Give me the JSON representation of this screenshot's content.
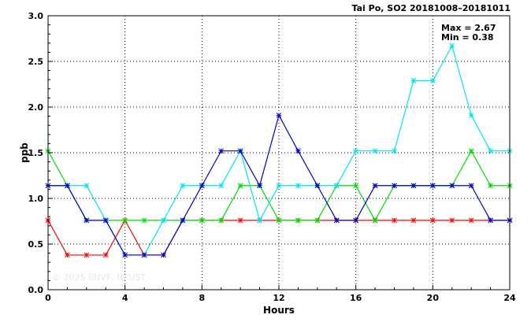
{
  "chart_data": {
    "type": "line",
    "title": "Tai Po, SO2 20181008–20181011",
    "xlabel": "Hours",
    "ylabel": "ppb",
    "xlim": [
      0,
      24
    ],
    "ylim": [
      0,
      3.0
    ],
    "xticks": [
      0,
      4,
      8,
      12,
      16,
      20,
      24
    ],
    "yticks": [
      0.0,
      0.5,
      1.0,
      1.5,
      2.0,
      2.5,
      3.0
    ],
    "ytick_labels": [
      "0.0",
      "0.5",
      "1.0",
      "1.5",
      "2.0",
      "2.5",
      "3.0"
    ],
    "grid": true,
    "x": [
      0,
      1,
      2,
      3,
      4,
      5,
      6,
      7,
      8,
      9,
      10,
      11,
      12,
      13,
      14,
      15,
      16,
      17,
      18,
      19,
      20,
      21,
      22,
      23,
      24
    ],
    "series": [
      {
        "color": "#ff0000",
        "values": [
          0.76,
          0.38,
          0.38,
          0.38,
          0.76,
          0.38,
          0.38,
          0.76,
          0.76,
          0.76,
          0.76,
          0.76,
          0.76,
          0.76,
          0.76,
          0.76,
          0.76,
          0.76,
          0.76,
          0.76,
          0.76,
          0.76,
          0.76,
          0.76,
          0.76
        ]
      },
      {
        "color": "#00dd00",
        "values": [
          1.52,
          1.14,
          0.76,
          0.76,
          0.76,
          0.76,
          0.76,
          0.76,
          0.76,
          0.76,
          1.14,
          1.14,
          0.76,
          0.76,
          0.76,
          1.14,
          1.14,
          0.76,
          1.14,
          1.14,
          1.14,
          1.14,
          1.52,
          1.14,
          1.14
        ]
      },
      {
        "color": "#00e5ee",
        "values": [
          1.14,
          1.14,
          1.14,
          0.76,
          0.38,
          0.38,
          0.76,
          1.14,
          1.14,
          1.14,
          1.52,
          0.76,
          1.14,
          1.14,
          1.14,
          1.14,
          1.52,
          1.52,
          1.52,
          2.29,
          2.29,
          2.67,
          1.91,
          1.52,
          1.52
        ]
      },
      {
        "color": "#0000cc",
        "values": [
          1.14,
          1.14,
          0.76,
          0.76,
          0.38,
          0.38,
          0.38,
          0.76,
          1.14,
          1.52,
          1.52,
          1.14,
          1.91,
          1.52,
          1.14,
          0.76,
          0.76,
          1.14,
          1.14,
          1.14,
          1.14,
          1.14,
          1.14,
          0.76,
          0.76
        ]
      }
    ],
    "annotations": {
      "max": "Max = 2.67",
      "min": "Min = 0.38"
    },
    "watermark": "© 2025  ENVF, HKUST"
  }
}
